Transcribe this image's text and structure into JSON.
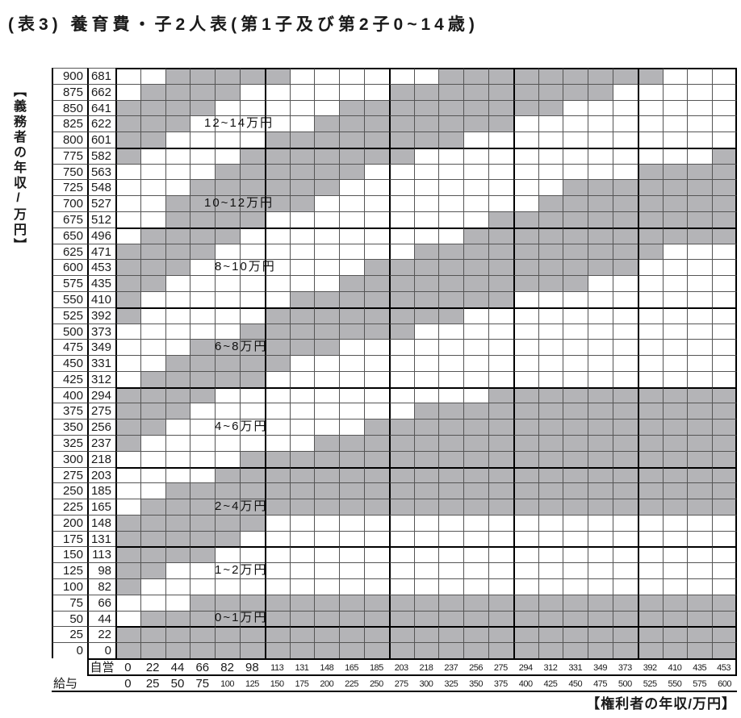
{
  "title": "(表3) 養育費・子2人表(第1子及び第2子0~14歳)",
  "chart_data": {
    "type": "heatmap",
    "title": "(表3) 養育費・子2人表(第1子及び第2子0~14歳)",
    "description_visible_text_only": "Stepped gray/white bands showing monthly child support ranges; gray and white regions alternate between labeled ranges.",
    "y_axis_title_vertical": "【義務者の年収/万円】",
    "x_axis_title": "【権利者の年収/万円】",
    "y_rows_top_to_bottom_salary": [
      "900",
      "875",
      "850",
      "825",
      "800",
      "775",
      "750",
      "725",
      "700",
      "675",
      "650",
      "625",
      "600",
      "575",
      "550",
      "525",
      "500",
      "475",
      "450",
      "425",
      "400",
      "375",
      "350",
      "325",
      "300",
      "275",
      "250",
      "225",
      "200",
      "175",
      "150",
      "125",
      "100",
      "75",
      "50",
      "25",
      "0"
    ],
    "y_rows_top_to_bottom_self_employed": [
      "681",
      "662",
      "641",
      "622",
      "601",
      "582",
      "563",
      "548",
      "527",
      "512",
      "496",
      "471",
      "453",
      "435",
      "410",
      "392",
      "373",
      "349",
      "331",
      "312",
      "294",
      "275",
      "256",
      "237",
      "218",
      "203",
      "185",
      "165",
      "148",
      "131",
      "113",
      "98",
      "82",
      "66",
      "44",
      "22",
      "0"
    ],
    "x_row_label_self_employed": "自営",
    "x_row_label_salary": "給与",
    "x_cols_left_to_right_self_employed": [
      "0",
      "22",
      "44",
      "66",
      "82",
      "98",
      "113",
      "131",
      "148",
      "165",
      "185",
      "203",
      "218",
      "237",
      "256",
      "275",
      "294",
      "312",
      "331",
      "349",
      "373",
      "392",
      "410",
      "435",
      "453"
    ],
    "x_cols_left_to_right_salary": [
      "0",
      "25",
      "50",
      "75",
      "100",
      "125",
      "150",
      "175",
      "200",
      "225",
      "250",
      "275",
      "300",
      "325",
      "350",
      "375",
      "400",
      "425",
      "450",
      "475",
      "500",
      "525",
      "550",
      "575",
      "600"
    ],
    "band_labels": [
      {
        "text": "12~14万円",
        "row": 3,
        "long": true
      },
      {
        "text": "10~12万円",
        "row": 8,
        "long": true
      },
      {
        "text": "8~10万円",
        "row": 12,
        "long": false
      },
      {
        "text": "6~8万円",
        "row": 17,
        "long": false
      },
      {
        "text": "4~6万円",
        "row": 22,
        "long": false
      },
      {
        "text": "2~4万円",
        "row": 27,
        "long": false
      },
      {
        "text": "1~2万円",
        "row": 31,
        "long": false
      },
      {
        "text": "0~1万円",
        "row": 34,
        "long": false
      }
    ],
    "grid": {
      "rows": 37,
      "cols": 25,
      "gray_color": "#b4b4b7",
      "gray_bitmap_rows_top_to_bottom": [
        "0011111000000111111111000",
        "0111100000011111111100000",
        "1111000001111111110000000",
        "1110000011111111000000000",
        "1100001111111100000000000",
        "1000011111110000000000001",
        "0000111111000000000001111",
        "0001111110000000001111111",
        "0011111100000000011111111",
        "0011110000000001111111111",
        "0111100000000011111111111",
        "1111000000001111111111000",
        "1110000000111111111110000",
        "1100000001111111111000000",
        "1000000111111111000000000",
        "1000001111111100000000000",
        "0000011111110000000000000",
        "0001111110000000000000000",
        "0011111000000000000000000",
        "0111110000000000000000000",
        "1111000000000001111111111",
        "1110000000001111111111111",
        "1100000000111111111111111",
        "1000000011111111111111111",
        "0000011111111111111111111",
        "0000111111111111111111111",
        "0011111111111111111111111",
        "0111111111111111111111111",
        "1111110000000000000000000",
        "1111100000000000000000000",
        "1111000000000000000000000",
        "1100000000000000000000000",
        "1000000000000000000000000",
        "0001111111111111111111111",
        "0111111111111111111111111",
        "1111111111111111111111111",
        "1111111111111111111111111"
      ]
    }
  }
}
